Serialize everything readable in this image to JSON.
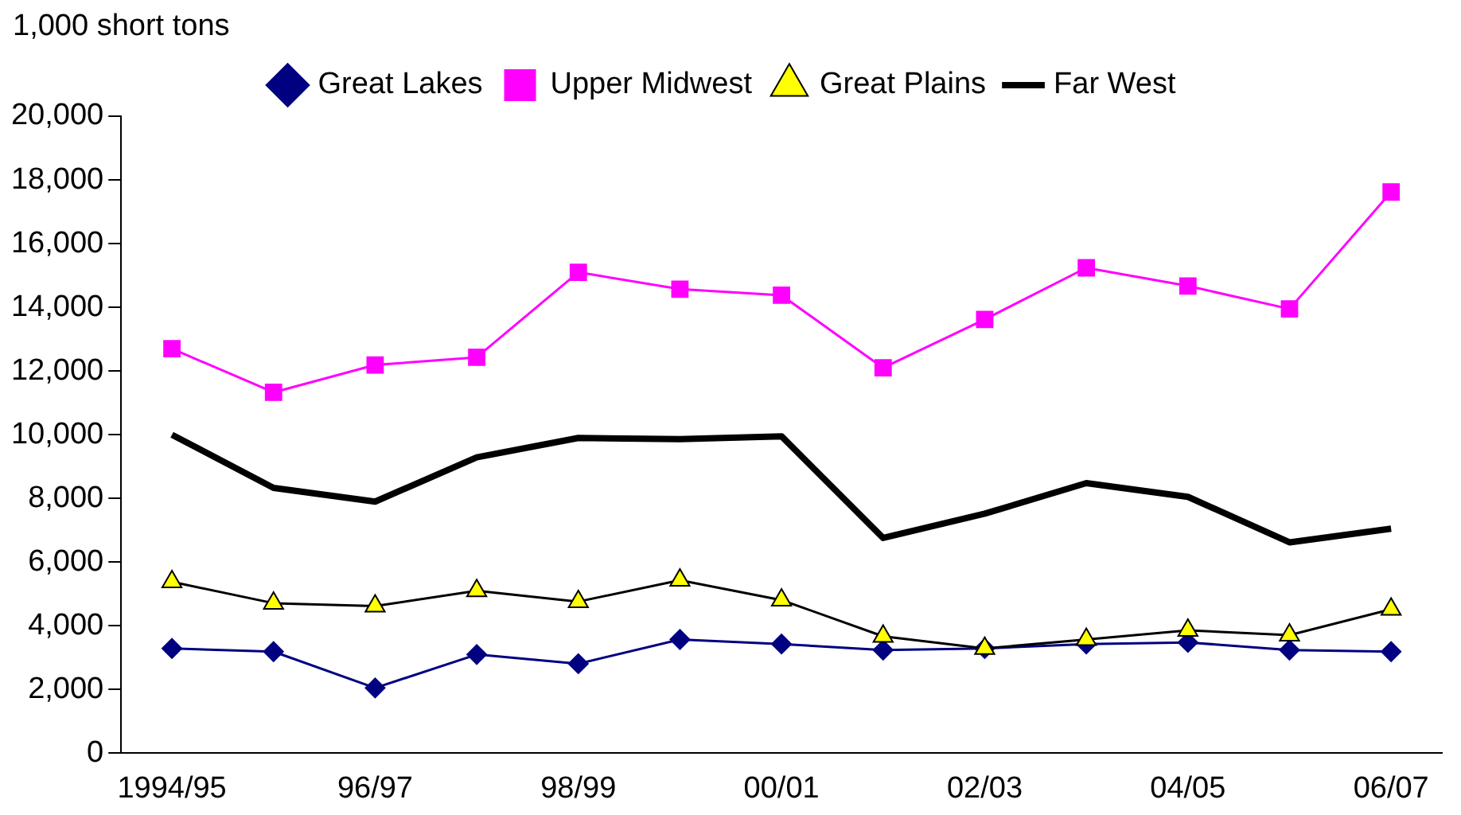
{
  "chart_data": {
    "type": "line",
    "ylabel": "1,000 short tons",
    "categories": [
      "1994/95",
      null,
      "96/97",
      null,
      "98/99",
      null,
      "00/01",
      null,
      "02/03",
      null,
      "04/05",
      null,
      "06/07"
    ],
    "ylim": [
      0,
      20000
    ],
    "yticks": [
      0,
      {
        "value": 2000,
        "label": "2,000"
      },
      {
        "value": 4000,
        "label": "4,000"
      },
      {
        "value": 6000,
        "label": "6,000"
      },
      {
        "value": 8000,
        "label": "8,000"
      },
      {
        "value": 10000,
        "label": "10,000"
      },
      {
        "value": 12000,
        "label": "12,000"
      },
      {
        "value": 14000,
        "label": "14,000"
      },
      {
        "value": 16000,
        "label": "16,000"
      },
      {
        "value": 18000,
        "label": "18,000"
      },
      {
        "value": 20000,
        "label": "20,000"
      }
    ],
    "grid": false,
    "legend": "top",
    "series": [
      {
        "name": "Great Lakes",
        "color": "#000080",
        "marker": "diamond",
        "values": [
          3290,
          3190,
          2050,
          3100,
          2810,
          3570,
          3430,
          3240,
          3290,
          3430,
          3480,
          3240,
          3190
        ]
      },
      {
        "name": "Upper Midwest",
        "color": "#ff00ff",
        "marker": "square",
        "values": [
          12700,
          11330,
          12190,
          12430,
          15100,
          14570,
          14380,
          12100,
          13620,
          15240,
          14670,
          13950,
          17620
        ]
      },
      {
        "name": "Great Plains",
        "color": "#000000",
        "marker": "triangle",
        "colors": [
          "#ffff00",
          "#ffff00",
          "#ffff00",
          "#ffff00",
          "#ffff00",
          "#ffff00",
          "#ffff00",
          "#ffff00",
          "#ffff00",
          "#ffff00",
          "#ffff00",
          "#ffff00",
          "#ffff00"
        ],
        "values": [
          5380,
          4710,
          4620,
          5100,
          4760,
          5430,
          4810,
          3670,
          3290,
          3570,
          3860,
          3710,
          4520
        ]
      },
      {
        "name": "Far West",
        "color": "#000000",
        "marker": "none",
        "values": [
          10000,
          8330,
          7900,
          9290,
          9900,
          9860,
          9950,
          6760,
          7520,
          8480,
          8050,
          6620,
          7050
        ]
      }
    ]
  }
}
